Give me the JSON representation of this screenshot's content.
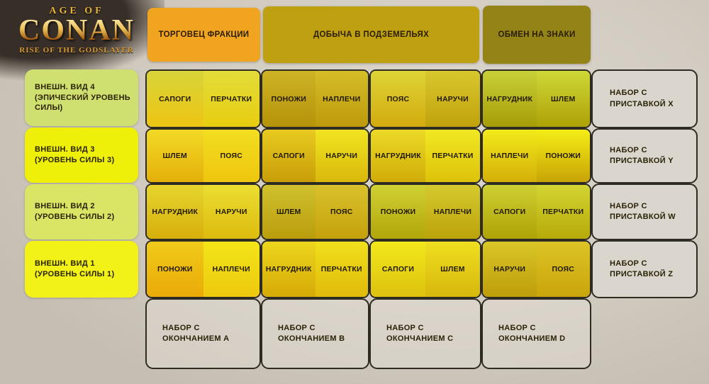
{
  "logo": {
    "line1": "AGE OF",
    "line2": "CONAN",
    "line3": "RISE OF THE GODSLAYER"
  },
  "headers": [
    {
      "label": "ТОРГОВЕЦ ФРАКЦИИ",
      "bg": "#f0a41f"
    },
    {
      "label": "ДОБЫЧА В ПОДЗЕМЕЛЬЯХ",
      "bg": "#bfa011"
    },
    {
      "label": "ОБМЕН НА ЗНАКИ",
      "bg": "#948317"
    }
  ],
  "sidebar": [
    {
      "label": "ВНЕШН. ВИД 4\n(ЭПИЧЕСКИЙ УРОВЕНЬ СИЛЫ)",
      "bg": "#cfe070"
    },
    {
      "label": "ВНЕШН. ВИД 3\n(УРОВЕНЬ СИЛЫ 3)",
      "bg": "#eef00a"
    },
    {
      "label": "ВНЕШН. ВИД 2\n(УРОВЕНЬ СИЛЫ 2)",
      "bg": "#d8e565"
    },
    {
      "label": "ВНЕШН. ВИД 1\n(УРОВЕНЬ СИЛЫ 1)",
      "bg": "#f2f218"
    }
  ],
  "grid": {
    "rows": [
      {
        "cards": [
          {
            "cells": [
              {
                "label": "САПОГИ",
                "c": [
                  "#d8d43a",
                  "#edc513"
                ]
              },
              {
                "label": "ПЕРЧАТКИ",
                "c": [
                  "#e2dc3a",
                  "#e8cd10"
                ]
              }
            ]
          },
          {
            "cells": [
              {
                "label": "ПОНОЖИ",
                "c": [
                  "#cdb325",
                  "#b6930a"
                ]
              },
              {
                "label": "НАПЛЕЧИ",
                "c": [
                  "#d5bd28",
                  "#bd9a0c"
                ]
              }
            ]
          },
          {
            "cells": [
              {
                "label": "ПОЯС",
                "c": [
                  "#ded437",
                  "#d2ab0e"
                ]
              },
              {
                "label": "НАРУЧИ",
                "c": [
                  "#d8c72e",
                  "#c1a20c"
                ]
              }
            ]
          },
          {
            "cells": [
              {
                "label": "НАГРУДНИК",
                "c": [
                  "#c9d037",
                  "#a59d08"
                ]
              },
              {
                "label": "ШЛЕМ",
                "c": [
                  "#cfd838",
                  "#ada106"
                ]
              }
            ]
          }
        ],
        "suffix": "НАБОР С\nПРИСТАВКОЙ X"
      },
      {
        "cards": [
          {
            "cells": [
              {
                "label": "ШЛЕМ",
                "c": [
                  "#f2da26",
                  "#e4b00a"
                ]
              },
              {
                "label": "ПОЯС",
                "c": [
                  "#f2de22",
                  "#eec60e"
                ]
              }
            ]
          },
          {
            "cells": [
              {
                "label": "САПОГИ",
                "c": [
                  "#e8ca20",
                  "#c89e08"
                ]
              },
              {
                "label": "НАРУЧИ",
                "c": [
                  "#f0e522",
                  "#dab80b"
                ]
              }
            ]
          },
          {
            "cells": [
              {
                "label": "НАГРУДНИК",
                "c": [
                  "#ebda26",
                  "#d1ac09"
                ]
              },
              {
                "label": "ПЕРЧАТКИ",
                "c": [
                  "#f1e822",
                  "#ddc20a"
                ]
              }
            ]
          },
          {
            "cells": [
              {
                "label": "НАПЛЕЧИ",
                "c": [
                  "#f2ea1a",
                  "#d4af08"
                ]
              },
              {
                "label": "ПОНОЖИ",
                "c": [
                  "#f5ee16",
                  "#c8a306"
                ]
              }
            ]
          }
        ],
        "suffix": "НАБОР С\nПРИСТАВКОЙ Y"
      },
      {
        "cards": [
          {
            "cells": [
              {
                "label": "НАГРУДНИК",
                "c": [
                  "#e6d52e",
                  "#d7af0c"
                ]
              },
              {
                "label": "НАРУЧИ",
                "c": [
                  "#ebde32",
                  "#ddbb0e"
                ]
              }
            ]
          },
          {
            "cells": [
              {
                "label": "ШЛЕМ",
                "c": [
                  "#d0c12e",
                  "#ba9d0c"
                ]
              },
              {
                "label": "ПОЯС",
                "c": [
                  "#d9c12c",
                  "#c5a10c"
                ]
              }
            ]
          },
          {
            "cells": [
              {
                "label": "ПОНОЖИ",
                "c": [
                  "#d0d133",
                  "#b1a60a"
                ]
              },
              {
                "label": "НАПЛЕЧИ",
                "c": [
                  "#d5ca2f",
                  "#bba30a"
                ]
              }
            ]
          },
          {
            "cells": [
              {
                "label": "САПОГИ",
                "c": [
                  "#cdcf33",
                  "#aea306"
                ]
              },
              {
                "label": "ПЕРЧАТКИ",
                "c": [
                  "#d3d532",
                  "#b6aa0a"
                ]
              }
            ]
          }
        ],
        "suffix": "НАБОР С\nПРИСТАВКОЙ W"
      },
      {
        "cards": [
          {
            "cells": [
              {
                "label": "ПОНОЖИ",
                "c": [
                  "#f0cb1a",
                  "#eaaa08"
                ]
              },
              {
                "label": "НАПЛЕЧИ",
                "c": [
                  "#f2e518",
                  "#eec90e"
                ]
              }
            ]
          },
          {
            "cells": [
              {
                "label": "НАГРУДНИК",
                "c": [
                  "#edd61e",
                  "#d5aa06"
                ]
              },
              {
                "label": "ПЕРЧАТКИ",
                "c": [
                  "#f0e01c",
                  "#e0ba0a"
                ]
              }
            ]
          },
          {
            "cells": [
              {
                "label": "САПОГИ",
                "c": [
                  "#f2e91c",
                  "#ddc10e"
                ]
              },
              {
                "label": "ШЛЕМ",
                "c": [
                  "#efdf20",
                  "#d7b70c"
                ]
              }
            ]
          },
          {
            "cells": [
              {
                "label": "НАРУЧИ",
                "c": [
                  "#d9c728",
                  "#bd9d0a"
                ]
              },
              {
                "label": "ПОЯС",
                "c": [
                  "#ddc426",
                  "#c9a50a"
                ]
              }
            ]
          }
        ],
        "suffix": "НАБОР С\nПРИСТАВКОЙ Z"
      }
    ],
    "bottom": [
      "НАБОР С\nОКОНЧАНИЕМ A",
      "НАБОР С\nОКОНЧАНИЕМ B",
      "НАБОР С\nОКОНЧАНИЕМ C",
      "НАБОР С\nОКОНЧАНИЕМ D"
    ]
  },
  "palette": {
    "page_bg": "#d2ccc2",
    "card_border": "#2e2b24",
    "paper_card_bg": "#dad6cd",
    "cell_text": "#211905",
    "logo_gold": "#e9b33c"
  }
}
